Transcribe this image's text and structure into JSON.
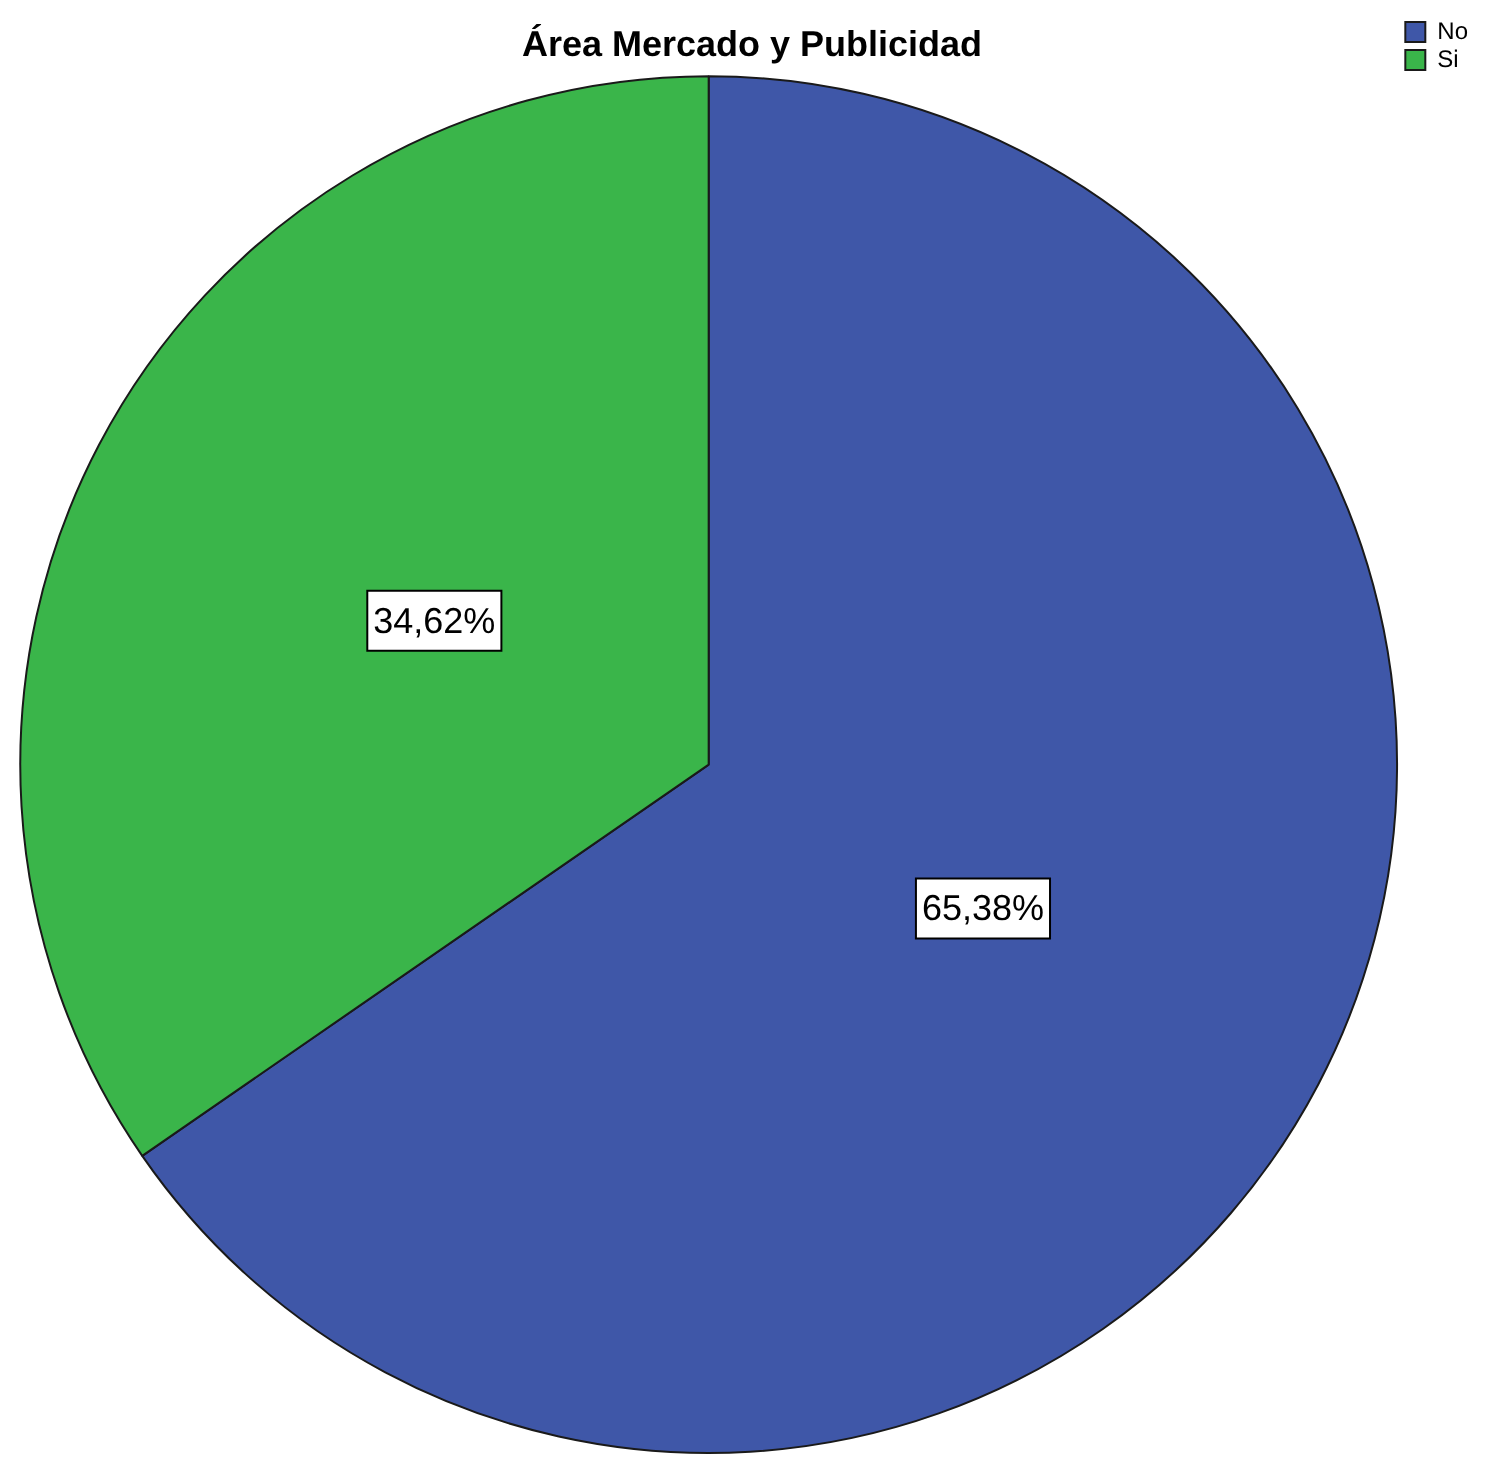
{
  "chart_data": {
    "type": "pie",
    "title": "Área Mercado y Publicidad",
    "categories": [
      "No",
      "Si"
    ],
    "values": [
      65.38,
      34.62
    ],
    "colors": [
      "#3f57a8",
      "#3ab54a"
    ],
    "value_labels": [
      "65,38%",
      "34,62%"
    ],
    "legend": "top right"
  }
}
